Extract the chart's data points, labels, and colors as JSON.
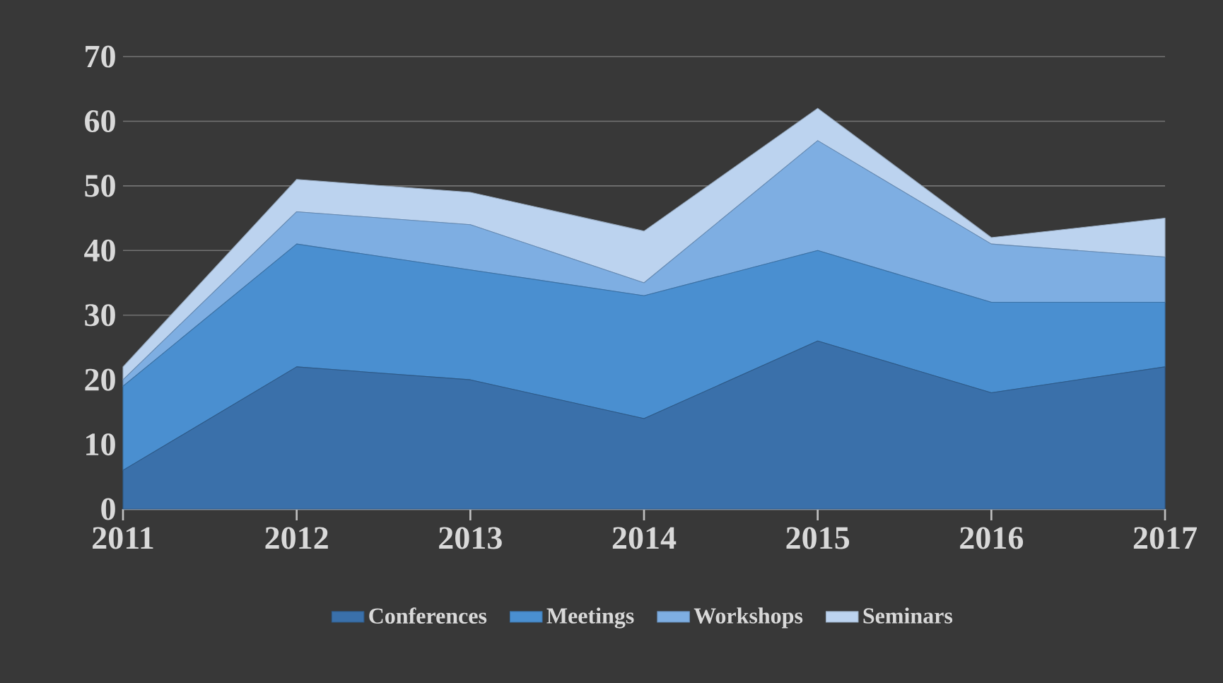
{
  "chart_data": {
    "type": "area",
    "stacked": true,
    "categories": [
      "2011",
      "2012",
      "2013",
      "2014",
      "2015",
      "2016",
      "2017"
    ],
    "series": [
      {
        "name": "Conferences",
        "color": "#3a70aa",
        "values": [
          6,
          22,
          20,
          14,
          26,
          18,
          22
        ]
      },
      {
        "name": "Meetings",
        "color": "#4a8fd0",
        "values": [
          13,
          19,
          17,
          19,
          14,
          14,
          10
        ]
      },
      {
        "name": "Workshops",
        "color": "#7eaee2",
        "values": [
          1,
          5,
          7,
          2,
          17,
          9,
          7
        ]
      },
      {
        "name": "Seminars",
        "color": "#bcd3ef",
        "values": [
          2,
          5,
          5,
          8,
          5,
          1,
          6
        ]
      }
    ],
    "ylim": [
      0,
      70
    ],
    "yticks": [
      0,
      10,
      20,
      30,
      40,
      50,
      60,
      70
    ],
    "grid": "y",
    "legend": "bottom"
  }
}
